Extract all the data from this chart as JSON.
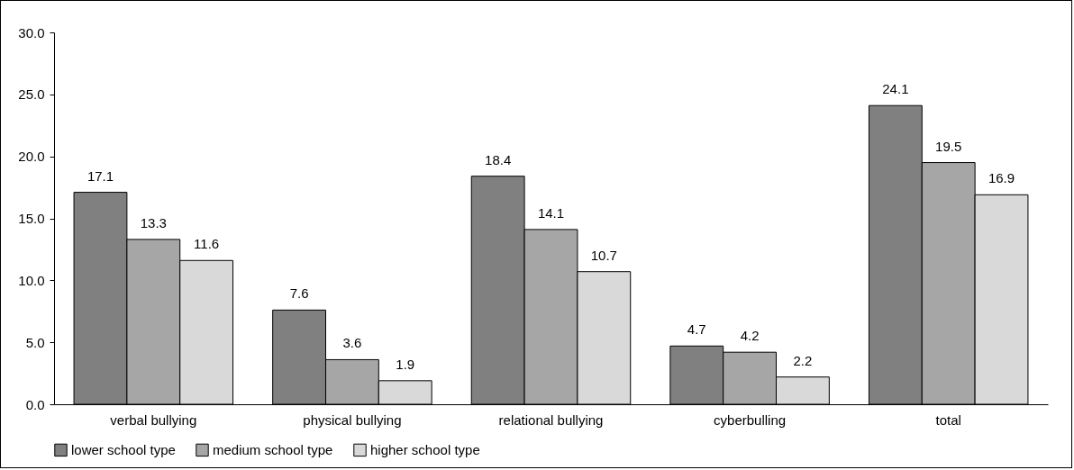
{
  "chart_data": {
    "type": "bar",
    "categories": [
      "verbal bullying",
      "physical bullying",
      "relational bullying",
      "cyberbulling",
      "total"
    ],
    "series": [
      {
        "name": "lower school type",
        "color": "#808080",
        "values": [
          17.1,
          7.6,
          18.4,
          4.7,
          24.1
        ]
      },
      {
        "name": "medium school type",
        "color": "#a6a6a6",
        "values": [
          13.3,
          3.6,
          14.1,
          4.2,
          19.5
        ]
      },
      {
        "name": "higher school type",
        "color": "#d9d9d9",
        "values": [
          11.6,
          1.9,
          10.7,
          2.2,
          16.9
        ]
      }
    ],
    "ylim": [
      0,
      30
    ],
    "yticks": [
      {
        "value": 0,
        "label": "0.0"
      },
      {
        "value": 5,
        "label": "5.0"
      },
      {
        "value": 10,
        "label": "10.0"
      },
      {
        "value": 15,
        "label": "15.0"
      },
      {
        "value": 20,
        "label": "20.0"
      },
      {
        "value": 25,
        "label": "25.0"
      },
      {
        "value": 30,
        "label": "30.0"
      }
    ],
    "data_labels": true,
    "grid": false,
    "legend": "bottom"
  }
}
